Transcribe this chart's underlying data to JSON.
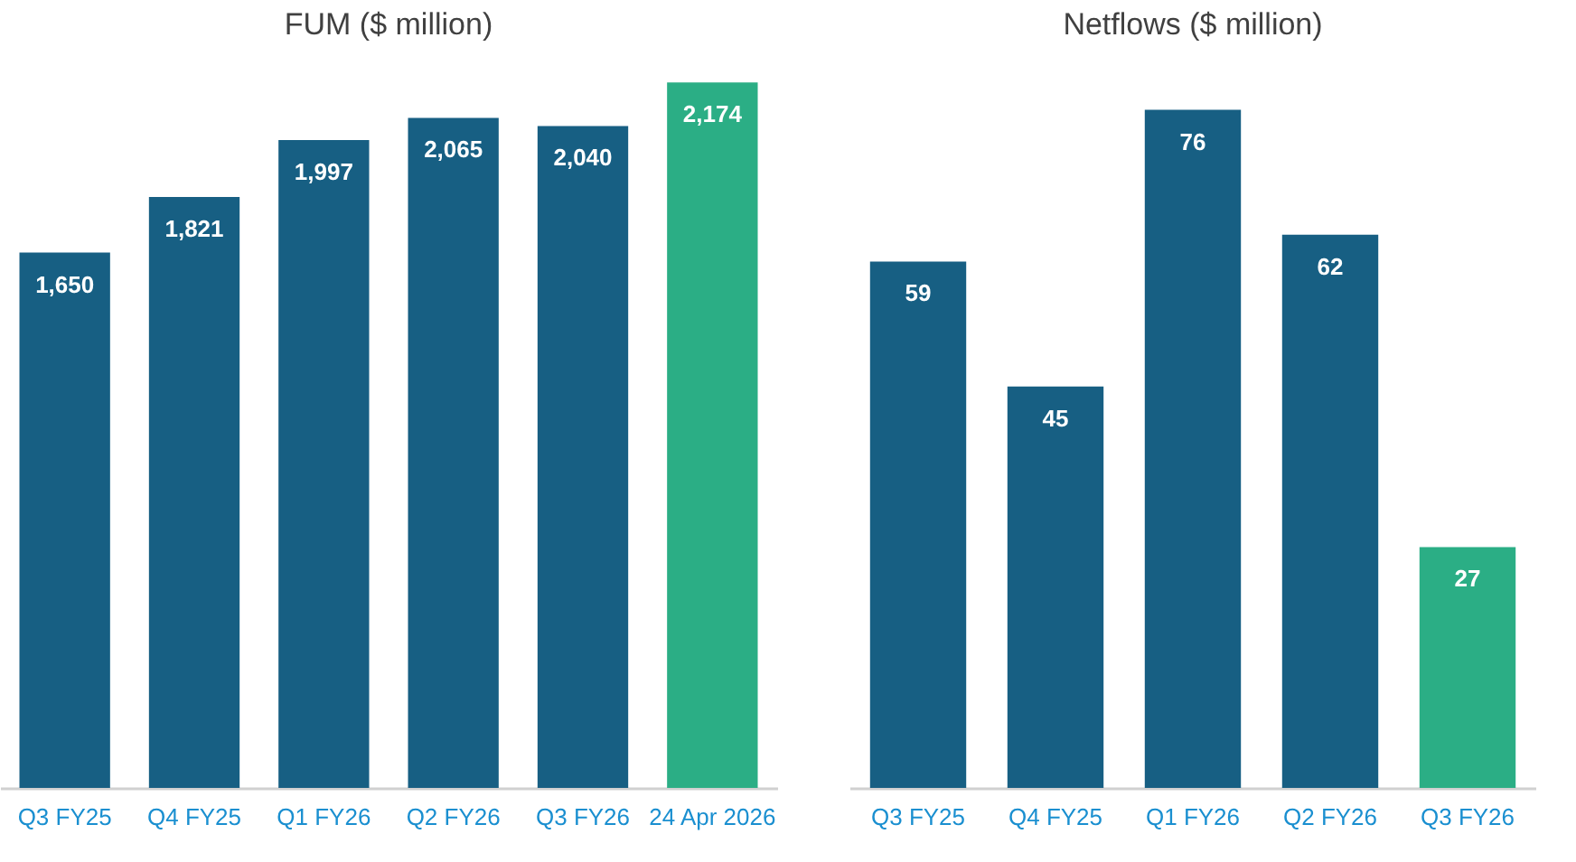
{
  "chart_data": [
    {
      "type": "bar",
      "title": "FUM ($ million)",
      "categories": [
        "Q3 FY25",
        "Q4 FY25",
        "Q1 FY26",
        "Q2 FY26",
        "Q3 FY26",
        "24 Apr 2026"
      ],
      "values": [
        1650,
        1821,
        1997,
        2065,
        2040,
        2174
      ],
      "value_labels": [
        "1,650",
        "1,821",
        "1,997",
        "2,065",
        "2,040",
        "2,174"
      ],
      "colors": [
        "#175f83",
        "#175f83",
        "#175f83",
        "#175f83",
        "#175f83",
        "#2bae85"
      ],
      "tick_labels": "x"
    },
    {
      "type": "bar",
      "title": "Netflows ($ million)",
      "categories": [
        "Q3 FY25",
        "Q4 FY25",
        "Q1 FY26",
        "Q2 FY26",
        "Q3 FY26"
      ],
      "values": [
        59,
        45,
        76,
        62,
        27
      ],
      "colors": [
        "#175f83",
        "#175f83",
        "#175f83",
        "#175f83",
        "#2bae85"
      ],
      "data_labels": true,
      "tick_labels": "x"
    }
  ]
}
